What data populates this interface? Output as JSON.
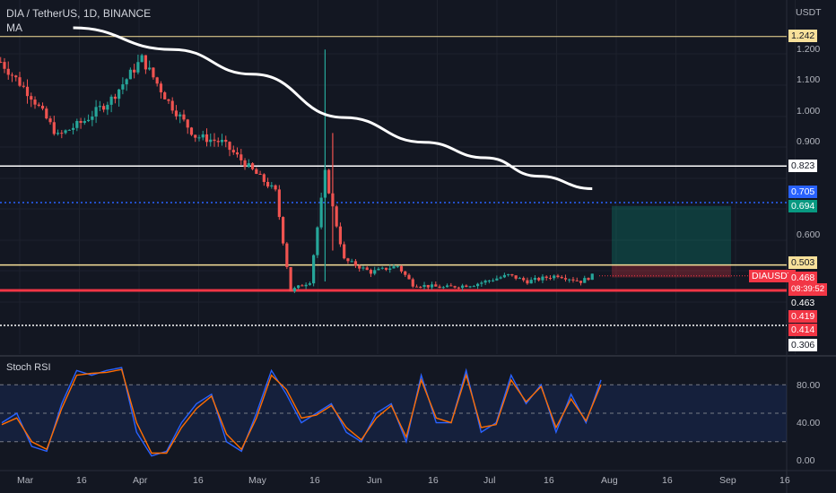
{
  "header": {
    "symbol_line": "DIA / TetherUS, 1D, BINANCE",
    "indicator": "MA",
    "currency": "USDT",
    "osc_label": "Stoch RSI"
  },
  "axis": {
    "y_ticks": [
      "1.200",
      "1.100",
      "1.000",
      "0.900",
      "0.600"
    ],
    "x_ticks": [
      "Mar",
      "16",
      "Apr",
      "16",
      "May",
      "16",
      "Jun",
      "16",
      "Jul",
      "16",
      "Aug",
      "16",
      "Sep",
      "16"
    ],
    "osc_ticks": [
      "80.00",
      "40.00",
      "0.00"
    ]
  },
  "price_labels": {
    "l1242": "1.242",
    "l0823": "0.823",
    "l0705": "0.705",
    "l0694": "0.694",
    "l0503": "0.503",
    "symbol": "DIAUSDT",
    "l0468": "0.468",
    "timer": "08:39:52",
    "l0463": "0.463",
    "l0419": "0.419",
    "l0414": "0.414",
    "l0306": "0.306"
  },
  "colors": {
    "background": "#131722",
    "up": "#26a69a",
    "down": "#ef5350",
    "ma": "#ffffff",
    "level_yellow": "#f7e09a",
    "level_red": "#f23645",
    "level_blue": "#2962ff",
    "stoch_k": "#2962ff",
    "stoch_d": "#ff6d00"
  },
  "chart_data": [
    {
      "type": "candlestick",
      "title": "DIA / TetherUS, 1D, BINANCE",
      "x": [
        "2023-02-24",
        "2023-07-29"
      ],
      "ylabel": "USDT",
      "ylim": [
        0.306,
        1.242
      ],
      "current_price": 0.468,
      "moving_average": {
        "name": "MA",
        "points": [
          [
            "2023-03-15",
            1.27
          ],
          [
            "2023-04-10",
            1.2
          ],
          [
            "2023-05-01",
            1.12
          ],
          [
            "2023-05-25",
            0.98
          ],
          [
            "2023-06-15",
            0.9
          ],
          [
            "2023-07-01",
            0.85
          ],
          [
            "2023-07-15",
            0.79
          ],
          [
            "2023-07-29",
            0.75
          ]
        ]
      },
      "horizontal_levels": [
        1.242,
        0.823,
        0.705,
        0.503,
        0.463,
        0.414,
        0.306
      ],
      "long_position": {
        "entry": 0.503,
        "target": 0.694,
        "stop": 0.463
      },
      "series_approx": [
        [
          "2023-02-24",
          1.16
        ],
        [
          "2023-03-04",
          1.05
        ],
        [
          "2023-03-11",
          0.92
        ],
        [
          "2023-03-18",
          0.97
        ],
        [
          "2023-03-25",
          1.04
        ],
        [
          "2023-04-02",
          1.17
        ],
        [
          "2023-04-09",
          1.03
        ],
        [
          "2023-04-16",
          0.92
        ],
        [
          "2023-04-23",
          0.9
        ],
        [
          "2023-04-30",
          0.82
        ],
        [
          "2023-05-07",
          0.74
        ],
        [
          "2023-05-11",
          0.42
        ],
        [
          "2023-05-16",
          0.45
        ],
        [
          "2023-05-20",
          0.8
        ],
        [
          "2023-05-25",
          0.52
        ],
        [
          "2023-06-01",
          0.48
        ],
        [
          "2023-06-08",
          0.5
        ],
        [
          "2023-06-12",
          0.44
        ],
        [
          "2023-06-20",
          0.43
        ],
        [
          "2023-06-28",
          0.44
        ],
        [
          "2023-07-07",
          0.47
        ],
        [
          "2023-07-12",
          0.45
        ],
        [
          "2023-07-20",
          0.47
        ],
        [
          "2023-07-26",
          0.45
        ],
        [
          "2023-07-29",
          0.468
        ]
      ]
    },
    {
      "type": "line",
      "title": "Stoch RSI",
      "ylim": [
        0,
        100
      ],
      "levels": [
        80,
        50,
        20
      ],
      "series": [
        {
          "name": "K",
          "values": [
            40,
            50,
            15,
            10,
            60,
            95,
            90,
            95,
            98,
            30,
            5,
            10,
            40,
            60,
            70,
            20,
            10,
            50,
            95,
            70,
            40,
            50,
            60,
            30,
            20,
            50,
            60,
            20,
            90,
            40,
            40,
            95,
            30,
            40,
            90,
            60,
            80,
            30,
            70,
            40,
            85
          ]
        },
        {
          "name": "D",
          "values": [
            38,
            45,
            20,
            12,
            55,
            90,
            92,
            93,
            96,
            40,
            8,
            8,
            35,
            55,
            68,
            28,
            12,
            45,
            90,
            75,
            45,
            48,
            58,
            35,
            22,
            45,
            58,
            25,
            85,
            45,
            40,
            90,
            35,
            38,
            85,
            62,
            78,
            35,
            65,
            42,
            80
          ]
        }
      ]
    }
  ]
}
